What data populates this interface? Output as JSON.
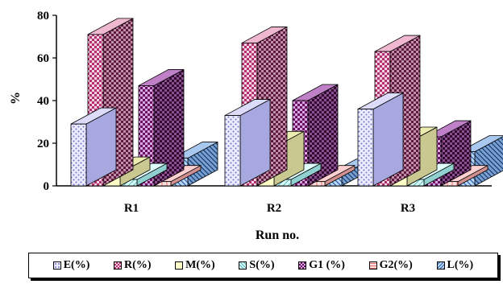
{
  "chart_data": {
    "type": "bar",
    "title": "",
    "xlabel": "Run no.",
    "ylabel": "%",
    "ylim": [
      0,
      80
    ],
    "yticks": [
      0,
      20,
      40,
      60,
      80
    ],
    "categories": [
      "R1",
      "R2",
      "R3"
    ],
    "series": [
      {
        "name": "E(%)",
        "values": [
          29,
          33,
          36
        ]
      },
      {
        "name": "R(%)",
        "values": [
          71,
          67,
          63
        ]
      },
      {
        "name": "M(%)",
        "values": [
          6,
          18,
          20
        ]
      },
      {
        "name": "S(%)",
        "values": [
          3,
          3,
          3
        ]
      },
      {
        "name": "G1 (%)",
        "values": [
          47,
          40,
          23
        ]
      },
      {
        "name": "G2(%)",
        "values": [
          2,
          2,
          2
        ]
      },
      {
        "name": "L(%)",
        "values": [
          13,
          5,
          16
        ]
      }
    ],
    "legend_position": "bottom",
    "grid": false,
    "style": "3d-patterned",
    "colors": [
      "#c9c9f2",
      "#e080a8",
      "#ffffc0",
      "#c8ffff",
      "#8a1e78",
      "#ffb0b0",
      "#4a86d0"
    ]
  }
}
